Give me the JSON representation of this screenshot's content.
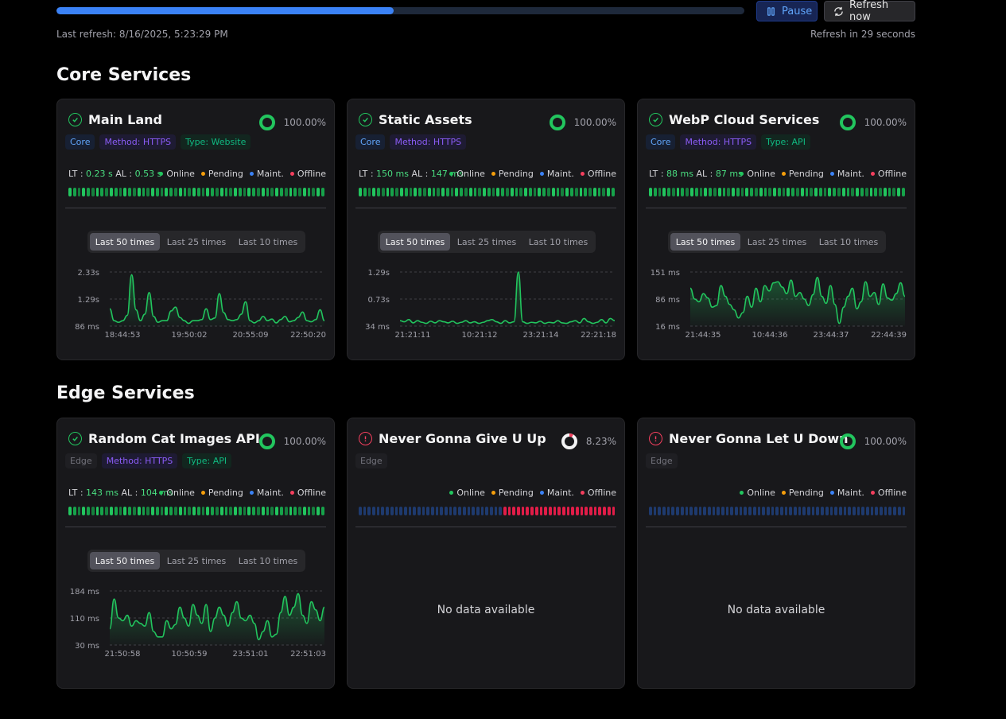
{
  "topbar": {
    "progress_percent": 49,
    "pause_label": "Pause",
    "refresh_label": "Refresh now",
    "last_refresh": "Last refresh: 8/16/2025, 5:23:29 PM",
    "refresh_in": "Refresh in 29 seconds"
  },
  "colors": {
    "online": "#22c55e",
    "pending": "#f59e0b",
    "maint": "#3b82f6",
    "offline": "#f43f5e",
    "accent": "#3b82f6"
  },
  "legend": {
    "online": "Online",
    "pending": "Pending",
    "maint": "Maint.",
    "offline": "Offline"
  },
  "range_tabs": [
    "Last 50 times",
    "Last 25 times",
    "Last 10 times"
  ],
  "no_data": "No data available",
  "sections": [
    {
      "title": "Core Services",
      "cards": [
        {
          "name": "Main Land",
          "status": "ok",
          "uptime": "100.00%",
          "uptime_value": 1.0,
          "tags": [
            {
              "text": "Core",
              "kind": "core"
            },
            {
              "text": "Method: HTTPS",
              "kind": "method"
            },
            {
              "text": "Type: Website",
              "kind": "type"
            }
          ],
          "lt_label": "LT",
          "lt": "0.23 s",
          "al_label": "AL",
          "al": "0.53 s",
          "history": "GGGGGGGGGGGGGGGGGGGGGGGGGGGGGGGGGGGGGGGGGGGGGGGGGGGGGGGG",
          "chart": {
            "yticks": [
              "2.33s",
              "1.29s",
              "86 ms"
            ],
            "xticks": [
              "18:44:53",
              "19:50:02",
              "20:55:09",
              "22:50:20"
            ],
            "values": [
              0.32,
              0.1,
              0.07,
              0.1,
              0.2,
              0.95,
              0.3,
              0.1,
              0.22,
              0.62,
              0.18,
              0.07,
              0.1,
              0.1,
              0.28,
              0.35,
              0.16,
              0.1,
              0.05,
              0.1,
              0.1,
              0.12,
              0.32,
              0.12,
              0.15,
              0.6,
              0.25,
              0.12,
              0.1,
              0.12,
              0.22,
              0.45,
              0.1,
              0.06,
              0.1,
              0.18,
              0.1,
              0.13,
              0.06,
              0.12,
              0.18,
              0.08,
              0.1,
              0.16,
              0.26,
              0.1,
              0.08,
              0.12,
              0.3,
              0.1
            ]
          }
        },
        {
          "name": "Static Assets",
          "status": "ok",
          "uptime": "100.00%",
          "uptime_value": 1.0,
          "tags": [
            {
              "text": "Core",
              "kind": "core"
            },
            {
              "text": "Method: HTTPS",
              "kind": "method"
            }
          ],
          "lt_label": "LT",
          "lt": "150 ms",
          "al_label": "AL",
          "al": "147 ms",
          "history": "GGGGGGGGGGGGGGGGGGGGGGGGGGGGGGGGGGGGGGGGGGGGGGGGGGGGGGGG",
          "chart": {
            "yticks": [
              "1.29s",
              "0.73s",
              "34 ms"
            ],
            "xticks": [
              "21:21:11",
              "10:21:12",
              "23:21:14",
              "22:21:18"
            ],
            "values": [
              0.1,
              0.08,
              0.12,
              0.06,
              0.1,
              0.07,
              0.05,
              0.09,
              0.06,
              0.1,
              0.08,
              0.06,
              0.09,
              0.05,
              0.07,
              0.1,
              0.06,
              0.08,
              0.05,
              0.07,
              0.1,
              0.12,
              0.08,
              0.05,
              0.1,
              0.06,
              0.08,
              1.0,
              0.08,
              0.05,
              0.07,
              0.06,
              0.09,
              0.05,
              0.07,
              0.06,
              0.1,
              0.06,
              0.05,
              0.08,
              0.1,
              0.06,
              0.14,
              0.08,
              0.05,
              0.07,
              0.12,
              0.06,
              0.14,
              0.1
            ]
          }
        },
        {
          "name": "WebP Cloud Services",
          "status": "ok",
          "uptime": "100.00%",
          "uptime_value": 1.0,
          "tags": [
            {
              "text": "Core",
              "kind": "core"
            },
            {
              "text": "Method: HTTPS",
              "kind": "method"
            },
            {
              "text": "Type: API",
              "kind": "type"
            }
          ],
          "lt_label": "LT",
          "lt": "88 ms",
          "al_label": "AL",
          "al": "87 ms",
          "history": "GGGGGGGGGGGGGGGGGGGGGGGGGGGGGGGGGGGGGGGGGGGGGGGGGGGGGGGG",
          "chart": {
            "yticks": [
              "151 ms",
              "86 ms",
              "16 ms"
            ],
            "xticks": [
              "21:44:35",
              "10:44:36",
              "23:44:37",
              "22:44:39"
            ],
            "values": [
              0.7,
              0.5,
              0.45,
              0.6,
              0.52,
              0.35,
              0.38,
              0.75,
              0.55,
              0.4,
              0.3,
              0.15,
              0.25,
              0.55,
              0.35,
              0.7,
              0.45,
              0.75,
              0.65,
              0.8,
              0.82,
              0.72,
              0.6,
              0.85,
              0.55,
              0.62,
              0.5,
              0.38,
              0.58,
              0.9,
              0.55,
              0.42,
              0.75,
              0.4,
              0.05,
              0.35,
              0.55,
              0.7,
              0.32,
              0.45,
              0.82,
              0.55,
              0.62,
              0.4,
              0.78,
              0.52,
              0.48,
              0.6,
              0.8,
              0.55
            ]
          }
        }
      ]
    },
    {
      "title": "Edge Services",
      "cards": [
        {
          "name": "Random Cat Images API",
          "status": "ok",
          "uptime": "100.00%",
          "uptime_value": 1.0,
          "tags": [
            {
              "text": "Edge",
              "kind": "edge"
            },
            {
              "text": "Method: HTTPS",
              "kind": "method"
            },
            {
              "text": "Type: API",
              "kind": "type"
            }
          ],
          "lt_label": "LT",
          "lt": "143 ms",
          "al_label": "AL",
          "al": "104 ms",
          "history": "GGGGGGGGGGGGGGGGGGGGGGGGGGGGGGGGGGGGGGGGGGGGGGGGGGGGGGGG",
          "chart": {
            "yticks": [
              "184 ms",
              "110 ms",
              "30 ms"
            ],
            "xticks": [
              "21:50:58",
              "10:50:59",
              "23:51:01",
              "22:51:03"
            ],
            "values": [
              0.3,
              0.85,
              0.5,
              0.45,
              0.55,
              0.35,
              0.45,
              0.4,
              0.35,
              0.6,
              0.25,
              0.15,
              0.15,
              0.45,
              0.3,
              0.38,
              0.7,
              0.5,
              0.35,
              0.75,
              0.55,
              0.4,
              0.75,
              0.25,
              0.5,
              0.7,
              0.55,
              0.35,
              0.6,
              0.8,
              0.5,
              0.45,
              0.55,
              0.4,
              0.1,
              0.25,
              0.45,
              0.15,
              0.2,
              0.6,
              0.9,
              0.55,
              0.7,
              0.95,
              0.55,
              0.4,
              0.8,
              0.65,
              0.45,
              0.7
            ]
          }
        },
        {
          "name": "Never Gonna Give U Up",
          "status": "bad",
          "uptime": "8.23%",
          "uptime_value": 0.0823,
          "tags": [
            {
              "text": "Edge",
              "kind": "edge"
            }
          ],
          "history": "MMMMMMMMMMMMMMMMMMMMMMMMMMMMMMMMOOOOOOOOOOOOOOOOOOOOOOOOO",
          "chart": null
        },
        {
          "name": "Never Gonna Let U Down",
          "status": "bad",
          "uptime": "100.00%",
          "uptime_value": 1.0,
          "tags": [
            {
              "text": "Edge",
              "kind": "edge"
            }
          ],
          "history": "MMMMMMMMMMMMMMMMMMMMMMMMMMMMMMMMMMMMMMMMMMMMMMMMMMMMMMMMM",
          "chart": null
        }
      ]
    }
  ]
}
